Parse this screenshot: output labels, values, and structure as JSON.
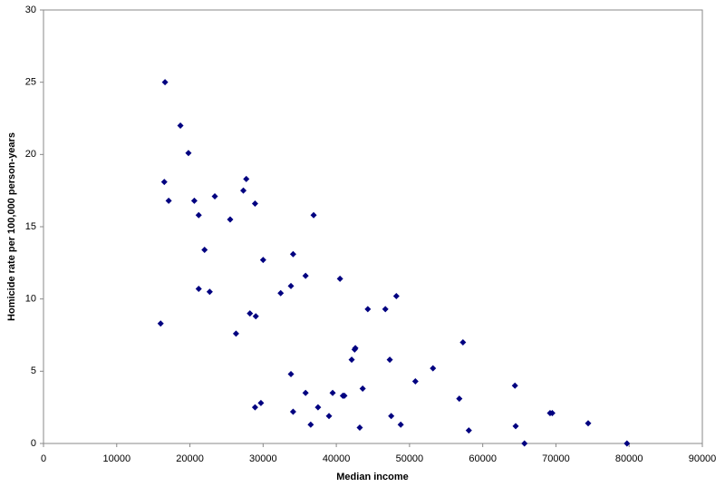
{
  "chart_data": {
    "type": "scatter",
    "x_label": "Median income",
    "y_label": "Homicide rate per 100,000 person-years",
    "xlim": [
      0,
      90000
    ],
    "ylim": [
      0,
      30
    ],
    "xticks": [
      0,
      10000,
      20000,
      30000,
      40000,
      50000,
      60000,
      70000,
      80000,
      90000
    ],
    "yticks": [
      0,
      5,
      10,
      15,
      20,
      25,
      30
    ],
    "grid": false,
    "series": [
      {
        "color": "#000080",
        "x": [
          16600,
          18700,
          19800,
          16500,
          17100,
          20600,
          21200,
          23400,
          27300,
          27700,
          28900,
          25500,
          22000,
          21200,
          22700,
          16000,
          26300,
          28200,
          29000,
          30000,
          32400,
          33800,
          34100,
          35800,
          36900,
          40500,
          44300,
          46700,
          48200,
          42500,
          42600,
          42100,
          47300,
          43600,
          40900,
          39500,
          35800,
          33800,
          34100,
          36500,
          37500,
          39000,
          41100,
          43200,
          28900,
          29700,
          47500,
          48800,
          50800,
          53200,
          57300,
          56800,
          58100,
          64400,
          64500,
          65700,
          69200,
          69500,
          74400,
          79700
        ],
        "values": [
          25.0,
          22.0,
          20.1,
          18.1,
          16.8,
          16.8,
          15.8,
          17.1,
          17.5,
          18.3,
          16.6,
          15.5,
          13.4,
          10.7,
          10.5,
          8.3,
          7.6,
          9.0,
          8.8,
          12.7,
          10.4,
          10.9,
          13.1,
          11.6,
          15.8,
          11.4,
          9.3,
          9.3,
          10.2,
          6.5,
          6.6,
          5.8,
          5.8,
          3.8,
          3.3,
          3.5,
          3.5,
          4.8,
          2.2,
          1.3,
          2.5,
          1.9,
          3.3,
          1.1,
          2.5,
          2.8,
          1.9,
          1.3,
          4.3,
          5.2,
          7.0,
          3.1,
          0.9,
          4.0,
          1.2,
          0.0,
          2.1,
          2.1,
          1.4,
          0.0
        ]
      }
    ]
  }
}
